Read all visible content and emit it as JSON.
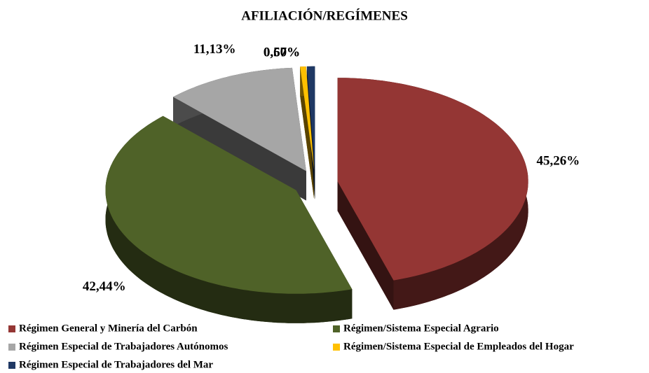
{
  "chart_data": {
    "type": "pie",
    "title": "AFILIACIÓN/REGÍMENES",
    "categories": [
      "Régimen General y Minería del Carbón",
      "Régimen/Sistema Especial Agrario",
      "Régimen Especial de Trabajadores Autónomos",
      "Régimen/Sistema Especial de Empleados del Hogar",
      "Régimen Especial de Trabajadores del Mar"
    ],
    "values": [
      45.26,
      42.44,
      11.13,
      0.5,
      0.67
    ],
    "value_labels": [
      "45,26%",
      "42,44%",
      "11,13%",
      "0,50%",
      "0,67%"
    ],
    "colors": [
      "#943634",
      "#4f6228",
      "#a6a6a6",
      "#ffc000",
      "#1f3864"
    ],
    "legend": "bottom"
  }
}
